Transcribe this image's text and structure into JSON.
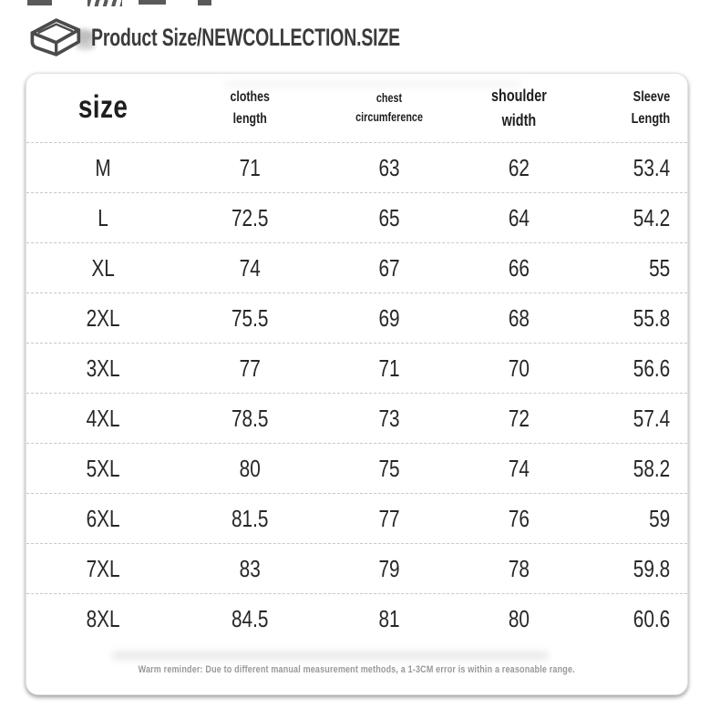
{
  "header": {
    "icon": "book-icon",
    "title": "Product Size/NEWCOLLECTION.SIZE"
  },
  "size_table": {
    "columns": [
      {
        "key": "size",
        "label": "size"
      },
      {
        "key": "clothes_length",
        "label": "clothes\nlength"
      },
      {
        "key": "chest_circumference",
        "label": "chest\ncircumference"
      },
      {
        "key": "shoulder_width",
        "label": "shoulder\nwidth"
      },
      {
        "key": "sleeve_length",
        "label": "Sleeve\nLength"
      }
    ],
    "rows": [
      {
        "size": "M",
        "clothes_length": "71",
        "chest_circumference": "63",
        "shoulder_width": "62",
        "sleeve_length": "53.4"
      },
      {
        "size": "L",
        "clothes_length": "72.5",
        "chest_circumference": "65",
        "shoulder_width": "64",
        "sleeve_length": "54.2"
      },
      {
        "size": "XL",
        "clothes_length": "74",
        "chest_circumference": "67",
        "shoulder_width": "66",
        "sleeve_length": "55"
      },
      {
        "size": "2XL",
        "clothes_length": "75.5",
        "chest_circumference": "69",
        "shoulder_width": "68",
        "sleeve_length": "55.8"
      },
      {
        "size": "3XL",
        "clothes_length": "77",
        "chest_circumference": "71",
        "shoulder_width": "70",
        "sleeve_length": "56.6"
      },
      {
        "size": "4XL",
        "clothes_length": "78.5",
        "chest_circumference": "73",
        "shoulder_width": "72",
        "sleeve_length": "57.4"
      },
      {
        "size": "5XL",
        "clothes_length": "80",
        "chest_circumference": "75",
        "shoulder_width": "74",
        "sleeve_length": "58.2"
      },
      {
        "size": "6XL",
        "clothes_length": "81.5",
        "chest_circumference": "77",
        "shoulder_width": "76",
        "sleeve_length": "59"
      },
      {
        "size": "7XL",
        "clothes_length": "83",
        "chest_circumference": "79",
        "shoulder_width": "78",
        "sleeve_length": "59.8"
      },
      {
        "size": "8XL",
        "clothes_length": "84.5",
        "chest_circumference": "81",
        "shoulder_width": "80",
        "sleeve_length": "60.6"
      }
    ]
  },
  "footer": {
    "reminder": "Warm reminder: Due to different manual measurement methods, a 1-3CM error is within a reasonable range."
  },
  "colors": {
    "page_bg": "#ffffff",
    "card_bg": "#ffffff",
    "title_text": "#3b3b3b",
    "table_text": "#272727",
    "divider": "#c8c8c8",
    "reminder_text": "#989898"
  }
}
